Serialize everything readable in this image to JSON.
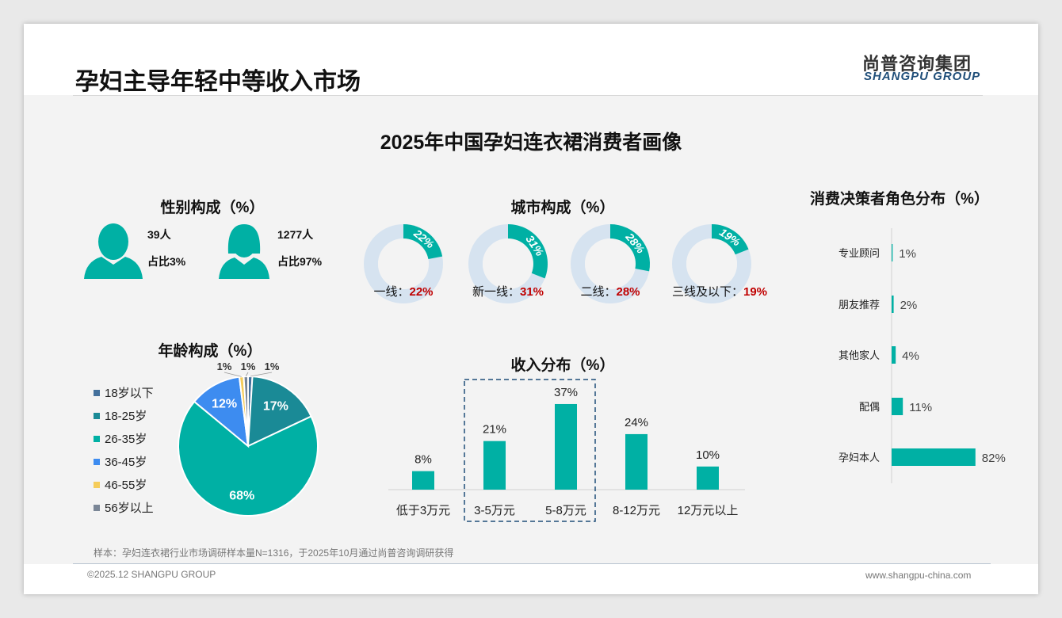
{
  "header": {
    "title": "孕妇主导年轻中等收入市场",
    "logo_cn": "尚普咨询集团",
    "logo_en": "SHANGPU GROUP"
  },
  "main_title": "2025年中国孕妇连衣裙消费者画像",
  "colors": {
    "teal": "#00b0a4",
    "light": "#d6e3f0",
    "red": "#c00000",
    "navy": "#1f4e79"
  },
  "gender": {
    "title": "性别构成（%）",
    "male": {
      "count": "39人",
      "share": "占比3%"
    },
    "female": {
      "count": "1277人",
      "share": "占比97%"
    }
  },
  "chart_data": [
    {
      "type": "pie",
      "title": "城市构成（%）",
      "categories": [
        "一线",
        "新一线",
        "二线",
        "三线及以下"
      ],
      "values": [
        22,
        31,
        28,
        19
      ],
      "labels": [
        "一线：",
        "新一线：",
        "二线：",
        "三线及以下："
      ],
      "value_labels": [
        "22%",
        "31%",
        "28%",
        "19%"
      ]
    },
    {
      "type": "pie",
      "title": "年龄构成（%）",
      "categories": [
        "18岁以下",
        "18-25岁",
        "26-35岁",
        "36-45岁",
        "46-55岁",
        "56岁以上"
      ],
      "values": [
        1,
        17,
        68,
        12,
        1,
        1
      ],
      "colors": [
        "#44709c",
        "#1a8a96",
        "#00b0a4",
        "#3d8cf0",
        "#f5cc5a",
        "#7a8696"
      ],
      "value_labels": [
        "1%",
        "17%",
        "68%",
        "12%",
        "1%",
        "1%"
      ]
    },
    {
      "type": "bar",
      "title": "收入分布（%）",
      "categories": [
        "低于3万元",
        "3-5万元",
        "5-8万元",
        "8-12万元",
        "12万元以上"
      ],
      "values": [
        8,
        21,
        37,
        24,
        10
      ],
      "value_labels": [
        "8%",
        "21%",
        "37%",
        "24%",
        "10%"
      ],
      "highlight": [
        "3-5万元",
        "5-8万元"
      ]
    },
    {
      "type": "bar",
      "orientation": "horizontal",
      "title": "消费决策者角色分布（%）",
      "categories": [
        "专业顾问",
        "朋友推荐",
        "其他家人",
        "配偶",
        "孕妇本人"
      ],
      "values": [
        1,
        2,
        4,
        11,
        82
      ],
      "value_labels": [
        "1%",
        "2%",
        "4%",
        "11%",
        "82%"
      ]
    }
  ],
  "footer": {
    "note": "样本：孕妇连衣裙行业市场调研样本量N=1316，于2025年10月通过尚普咨询调研获得",
    "copyright": "©2025.12 SHANGPU GROUP",
    "url": "www.shangpu-china.com"
  }
}
